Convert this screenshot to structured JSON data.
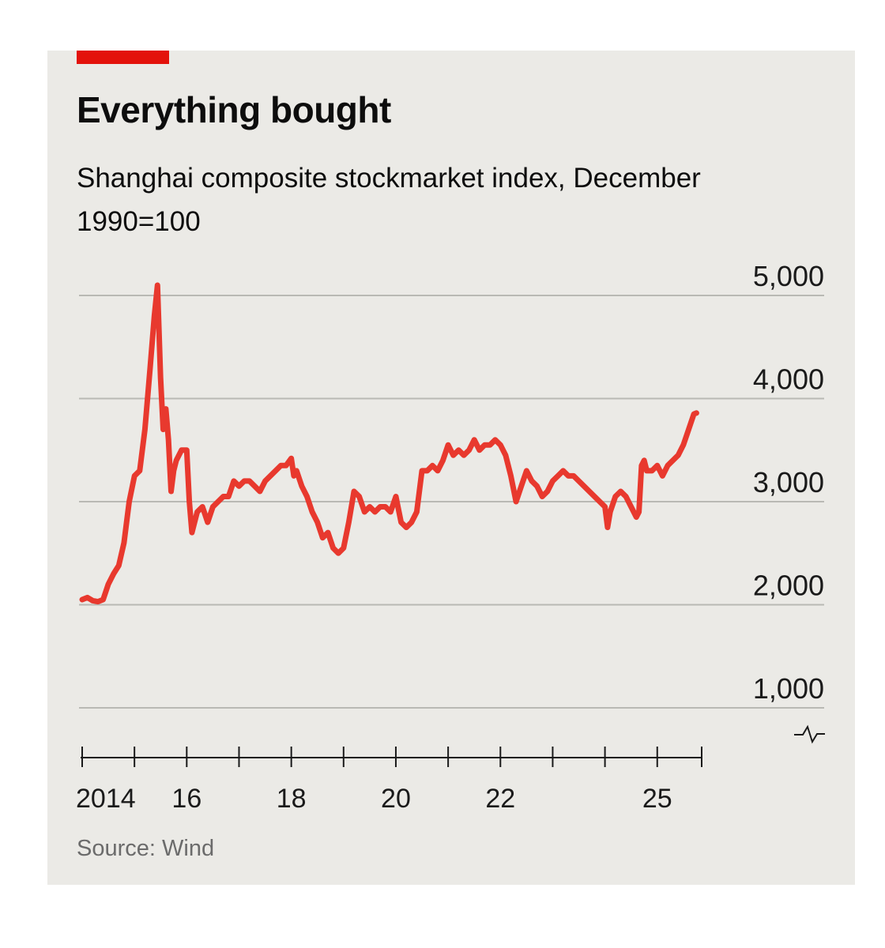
{
  "header": {
    "title": "Everything bought",
    "subtitle": "Shanghai composite stockmarket index, December 1990=100"
  },
  "footer": {
    "source": "Source: Wind"
  },
  "colors": {
    "accent": "#e3120b",
    "line": "#e8392e",
    "background": "#ebeae6",
    "grid": "#b9b9b4"
  },
  "chart_data": {
    "type": "line",
    "title": "Everything bought",
    "subtitle": "Shanghai composite stockmarket index, December 1990=100",
    "xlabel": "",
    "ylabel": "",
    "xlim": [
      2014.0,
      2025.85
    ],
    "ylim": [
      1000,
      5000
    ],
    "y_axis_break": true,
    "grid": true,
    "legend": "none",
    "y_ticks": [
      {
        "value": 1000,
        "label": "1,000"
      },
      {
        "value": 2000,
        "label": "2,000"
      },
      {
        "value": 3000,
        "label": "3,000"
      },
      {
        "value": 4000,
        "label": "4,000"
      },
      {
        "value": 5000,
        "label": "5,000"
      }
    ],
    "x_ticks": [
      2014,
      2015,
      2016,
      2017,
      2018,
      2019,
      2020,
      2021,
      2022,
      2023,
      2024,
      2025
    ],
    "x_tick_labels": [
      {
        "value": 2014,
        "label": "2014"
      },
      {
        "value": 2016,
        "label": "16"
      },
      {
        "value": 2018,
        "label": "18"
      },
      {
        "value": 2020,
        "label": "20"
      },
      {
        "value": 2022,
        "label": "22"
      },
      {
        "value": 2025,
        "label": "25"
      }
    ],
    "series": [
      {
        "points": [
          [
            2014.0,
            2050
          ],
          [
            2014.1,
            2070
          ],
          [
            2014.2,
            2040
          ],
          [
            2014.3,
            2030
          ],
          [
            2014.4,
            2050
          ],
          [
            2014.5,
            2200
          ],
          [
            2014.6,
            2300
          ],
          [
            2014.7,
            2380
          ],
          [
            2014.8,
            2600
          ],
          [
            2014.9,
            3000
          ],
          [
            2015.0,
            3250
          ],
          [
            2015.1,
            3300
          ],
          [
            2015.2,
            3700
          ],
          [
            2015.3,
            4300
          ],
          [
            2015.38,
            4800
          ],
          [
            2015.44,
            5100
          ],
          [
            2015.5,
            4200
          ],
          [
            2015.55,
            3700
          ],
          [
            2015.6,
            3900
          ],
          [
            2015.65,
            3600
          ],
          [
            2015.7,
            3100
          ],
          [
            2015.75,
            3300
          ],
          [
            2015.8,
            3400
          ],
          [
            2015.9,
            3500
          ],
          [
            2016.0,
            3500
          ],
          [
            2016.05,
            3000
          ],
          [
            2016.1,
            2700
          ],
          [
            2016.2,
            2900
          ],
          [
            2016.3,
            2950
          ],
          [
            2016.4,
            2800
          ],
          [
            2016.5,
            2950
          ],
          [
            2016.6,
            3000
          ],
          [
            2016.7,
            3050
          ],
          [
            2016.8,
            3050
          ],
          [
            2016.9,
            3200
          ],
          [
            2017.0,
            3150
          ],
          [
            2017.1,
            3200
          ],
          [
            2017.2,
            3200
          ],
          [
            2017.3,
            3150
          ],
          [
            2017.4,
            3100
          ],
          [
            2017.5,
            3200
          ],
          [
            2017.6,
            3250
          ],
          [
            2017.7,
            3300
          ],
          [
            2017.8,
            3350
          ],
          [
            2017.9,
            3350
          ],
          [
            2018.0,
            3420
          ],
          [
            2018.05,
            3250
          ],
          [
            2018.1,
            3300
          ],
          [
            2018.2,
            3150
          ],
          [
            2018.3,
            3050
          ],
          [
            2018.4,
            2900
          ],
          [
            2018.5,
            2800
          ],
          [
            2018.6,
            2650
          ],
          [
            2018.7,
            2700
          ],
          [
            2018.8,
            2550
          ],
          [
            2018.9,
            2500
          ],
          [
            2019.0,
            2550
          ],
          [
            2019.1,
            2800
          ],
          [
            2019.2,
            3100
          ],
          [
            2019.3,
            3050
          ],
          [
            2019.4,
            2900
          ],
          [
            2019.5,
            2950
          ],
          [
            2019.6,
            2900
          ],
          [
            2019.7,
            2950
          ],
          [
            2019.8,
            2950
          ],
          [
            2019.9,
            2900
          ],
          [
            2020.0,
            3050
          ],
          [
            2020.1,
            2800
          ],
          [
            2020.2,
            2750
          ],
          [
            2020.3,
            2800
          ],
          [
            2020.4,
            2900
          ],
          [
            2020.5,
            3300
          ],
          [
            2020.6,
            3300
          ],
          [
            2020.7,
            3350
          ],
          [
            2020.8,
            3300
          ],
          [
            2020.9,
            3400
          ],
          [
            2021.0,
            3550
          ],
          [
            2021.1,
            3450
          ],
          [
            2021.2,
            3500
          ],
          [
            2021.3,
            3450
          ],
          [
            2021.4,
            3500
          ],
          [
            2021.5,
            3600
          ],
          [
            2021.6,
            3500
          ],
          [
            2021.7,
            3550
          ],
          [
            2021.8,
            3550
          ],
          [
            2021.9,
            3600
          ],
          [
            2022.0,
            3550
          ],
          [
            2022.1,
            3450
          ],
          [
            2022.2,
            3250
          ],
          [
            2022.3,
            3000
          ],
          [
            2022.4,
            3150
          ],
          [
            2022.5,
            3300
          ],
          [
            2022.6,
            3200
          ],
          [
            2022.7,
            3150
          ],
          [
            2022.8,
            3050
          ],
          [
            2022.9,
            3100
          ],
          [
            2023.0,
            3200
          ],
          [
            2023.1,
            3250
          ],
          [
            2023.2,
            3300
          ],
          [
            2023.3,
            3250
          ],
          [
            2023.4,
            3250
          ],
          [
            2023.5,
            3200
          ],
          [
            2023.6,
            3150
          ],
          [
            2023.7,
            3100
          ],
          [
            2023.8,
            3050
          ],
          [
            2023.9,
            3000
          ],
          [
            2024.0,
            2950
          ],
          [
            2024.05,
            2750
          ],
          [
            2024.1,
            2900
          ],
          [
            2024.2,
            3050
          ],
          [
            2024.3,
            3100
          ],
          [
            2024.4,
            3050
          ],
          [
            2024.5,
            2950
          ],
          [
            2024.6,
            2850
          ],
          [
            2024.65,
            2900
          ],
          [
            2024.7,
            3350
          ],
          [
            2024.75,
            3400
          ],
          [
            2024.8,
            3300
          ],
          [
            2024.9,
            3300
          ],
          [
            2025.0,
            3350
          ],
          [
            2025.1,
            3250
          ],
          [
            2025.2,
            3350
          ],
          [
            2025.3,
            3400
          ],
          [
            2025.4,
            3450
          ],
          [
            2025.5,
            3550
          ],
          [
            2025.6,
            3700
          ],
          [
            2025.7,
            3850
          ],
          [
            2025.75,
            3860
          ]
        ]
      }
    ]
  }
}
